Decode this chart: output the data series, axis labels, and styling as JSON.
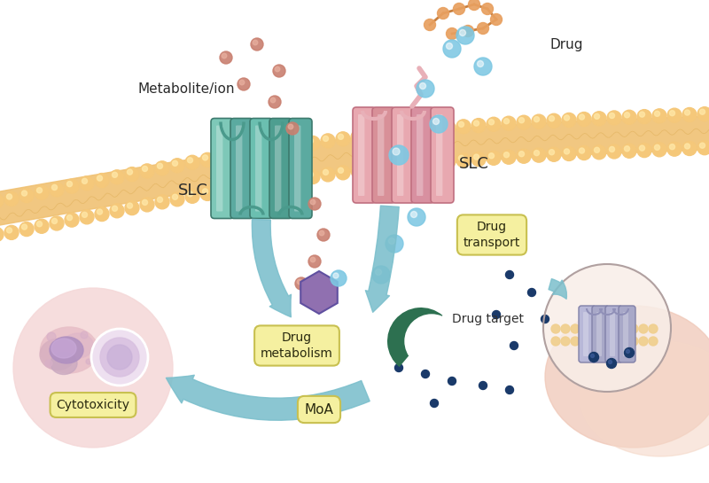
{
  "bg_color": "#ffffff",
  "membrane_color": "#F5C060",
  "membrane_fill": "#F0C070",
  "membrane_bead": "#F5C87A",
  "slc_green_colors": [
    "#7EC8B8",
    "#5BAAA0",
    "#6BBFB0",
    "#4E9E90",
    "#5BAAA0"
  ],
  "slc_green_dark": "#3D7A6E",
  "slc_pink_colors": [
    "#E8A8B0",
    "#D89098",
    "#E8A8B0",
    "#D890A0",
    "#E8A8B0"
  ],
  "slc_pink_dark": "#C07080",
  "slc_purple_colors": [
    "#B8B8D8",
    "#A8A8C8",
    "#B8B8D8"
  ],
  "metabolite_color": "#C98070",
  "drug_color": "#7EC8E3",
  "arrow_color": "#7BBFCC",
  "arrow_teal": "#6AB8C8",
  "purple_hex_color": "#9070B0",
  "green_crescent_color": "#2D7050",
  "dark_blue_dot_color": "#1A3A6A",
  "yellow_box_color": "#F5F0A0",
  "yellow_box_border": "#C8C050",
  "pink_circle_bg": "#F5D8D8",
  "right_cell_bg": "#F5E8E0",
  "orange_chain_color": "#E8A060",
  "metabolite_label": "Metabolite/ion",
  "drug_label": "Drug",
  "slc_label": "SLC",
  "cytotox_text": "Cytotoxicity",
  "drug_transport_text": "Drug\ntransport",
  "drug_metabolism_text": "Drug\nmetabolism",
  "drug_target_text": "Drug target",
  "moa_text": "MoA",
  "figsize": [
    8.0,
    5.45
  ],
  "dpi": 100
}
